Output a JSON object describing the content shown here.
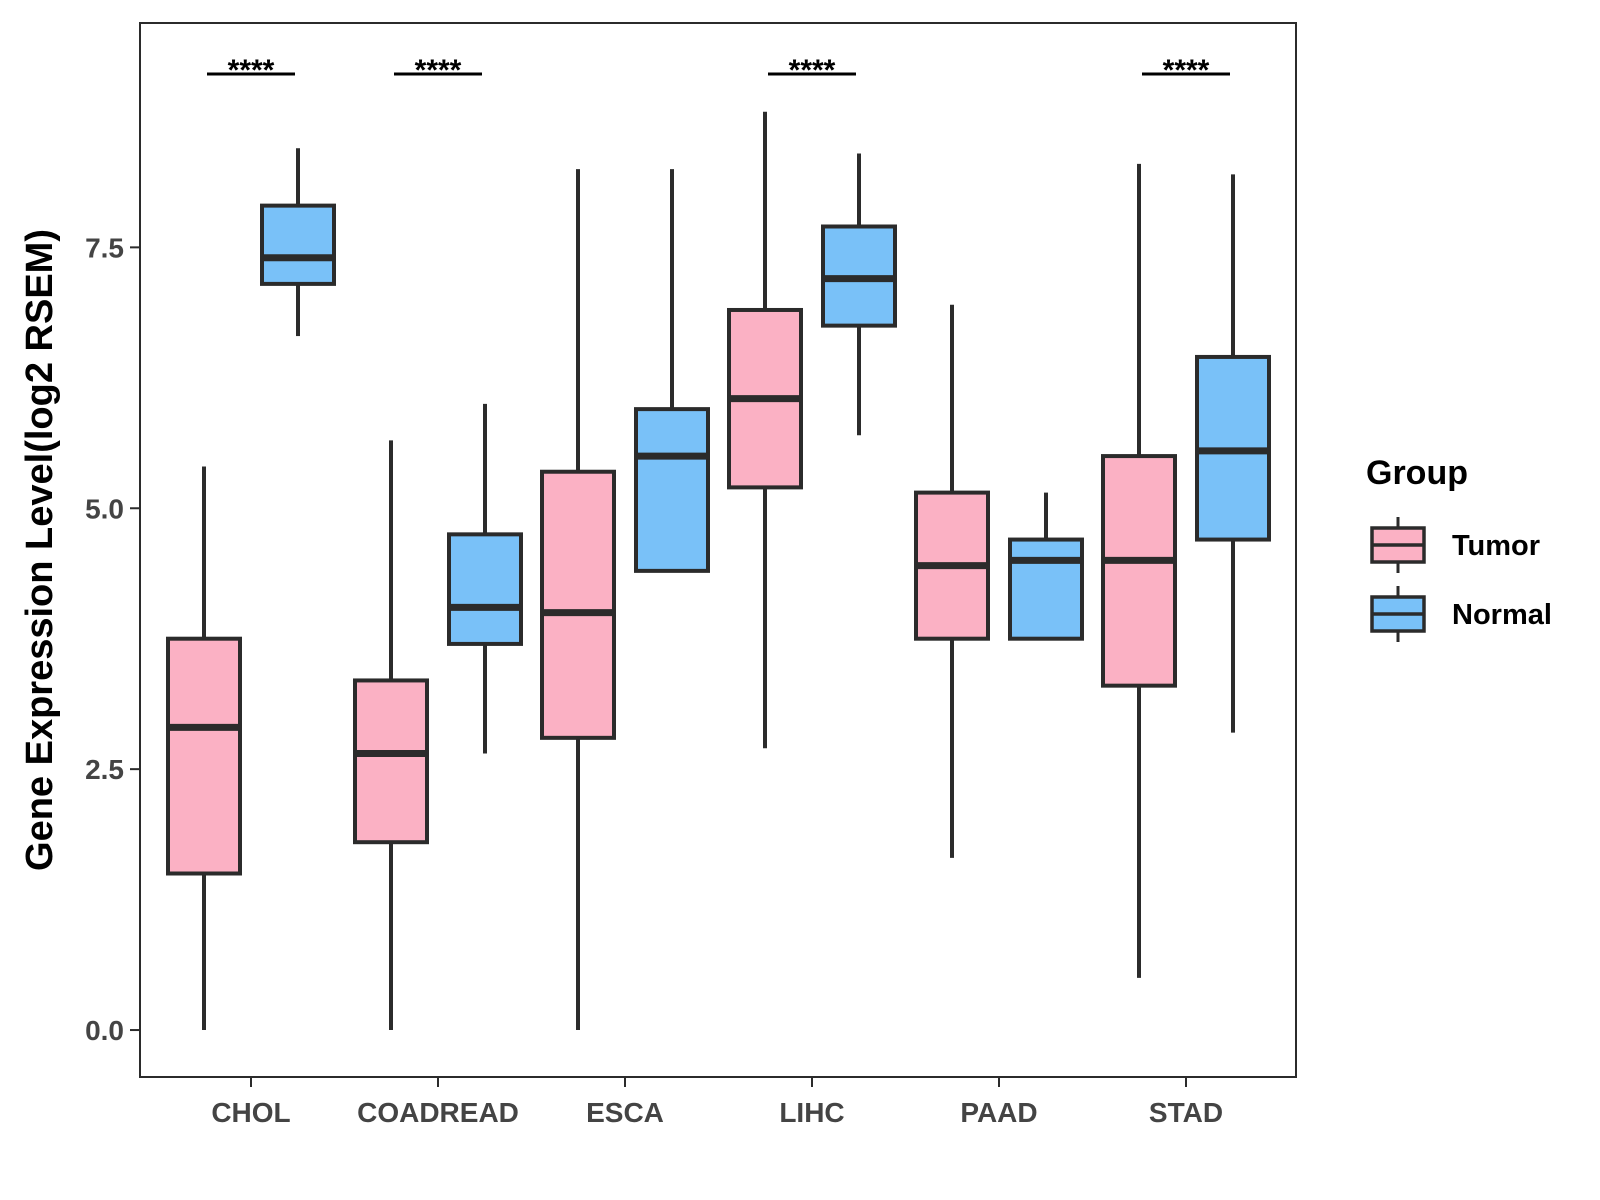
{
  "chart_data": {
    "type": "boxplot",
    "title": "",
    "xlabel": "",
    "ylabel": "Gene Expression Level(log2 RSEM)",
    "ylim": [
      -0.45,
      9.65
    ],
    "yticks": [
      0.0,
      2.5,
      5.0,
      7.5
    ],
    "ytick_labels": [
      "0.0",
      "2.5",
      "5.0",
      "7.5"
    ],
    "categories": [
      "CHOL",
      "COADREAD",
      "ESCA",
      "LIHC",
      "PAAD",
      "STAD"
    ],
    "legend": {
      "title": "Group",
      "position": "right",
      "entries": [
        "Tumor",
        "Normal"
      ]
    },
    "colors": {
      "Tumor": "#FBB1C4",
      "Normal": "#79C1F8",
      "outline": "#2B2B2B"
    },
    "series": [
      {
        "name": "Tumor",
        "boxes": [
          {
            "category": "CHOL",
            "min": 0.0,
            "q1": 1.5,
            "median": 2.9,
            "q3": 3.75,
            "max": 5.4
          },
          {
            "category": "COADREAD",
            "min": 0.0,
            "q1": 1.8,
            "median": 2.65,
            "q3": 3.35,
            "max": 5.65
          },
          {
            "category": "ESCA",
            "min": 0.0,
            "q1": 2.8,
            "median": 4.0,
            "q3": 5.35,
            "max": 8.25
          },
          {
            "category": "LIHC",
            "min": 2.7,
            "q1": 5.2,
            "median": 6.05,
            "q3": 6.9,
            "max": 8.8
          },
          {
            "category": "PAAD",
            "min": 1.65,
            "q1": 3.75,
            "median": 4.45,
            "q3": 5.15,
            "max": 6.95
          },
          {
            "category": "STAD",
            "min": 0.5,
            "q1": 3.3,
            "median": 4.5,
            "q3": 5.5,
            "max": 8.3
          }
        ]
      },
      {
        "name": "Normal",
        "boxes": [
          {
            "category": "CHOL",
            "min": 6.65,
            "q1": 7.15,
            "median": 7.4,
            "q3": 7.9,
            "max": 8.45
          },
          {
            "category": "COADREAD",
            "min": 2.65,
            "q1": 3.7,
            "median": 4.05,
            "q3": 4.75,
            "max": 6.0
          },
          {
            "category": "ESCA",
            "min": 4.4,
            "q1": 4.4,
            "median": 5.5,
            "q3": 5.95,
            "max": 8.25
          },
          {
            "category": "LIHC",
            "min": 5.7,
            "q1": 6.75,
            "median": 7.2,
            "q3": 7.7,
            "max": 8.4
          },
          {
            "category": "PAAD",
            "min": 3.75,
            "q1": 3.75,
            "median": 4.5,
            "q3": 4.7,
            "max": 5.15
          },
          {
            "category": "STAD",
            "min": 2.85,
            "q1": 4.7,
            "median": 5.55,
            "q3": 6.45,
            "max": 8.2
          }
        ]
      }
    ],
    "significance": [
      {
        "category": "CHOL",
        "label": "****"
      },
      {
        "category": "COADREAD",
        "label": "****"
      },
      {
        "category": "LIHC",
        "label": "****"
      },
      {
        "category": "STAD",
        "label": "****"
      }
    ]
  }
}
